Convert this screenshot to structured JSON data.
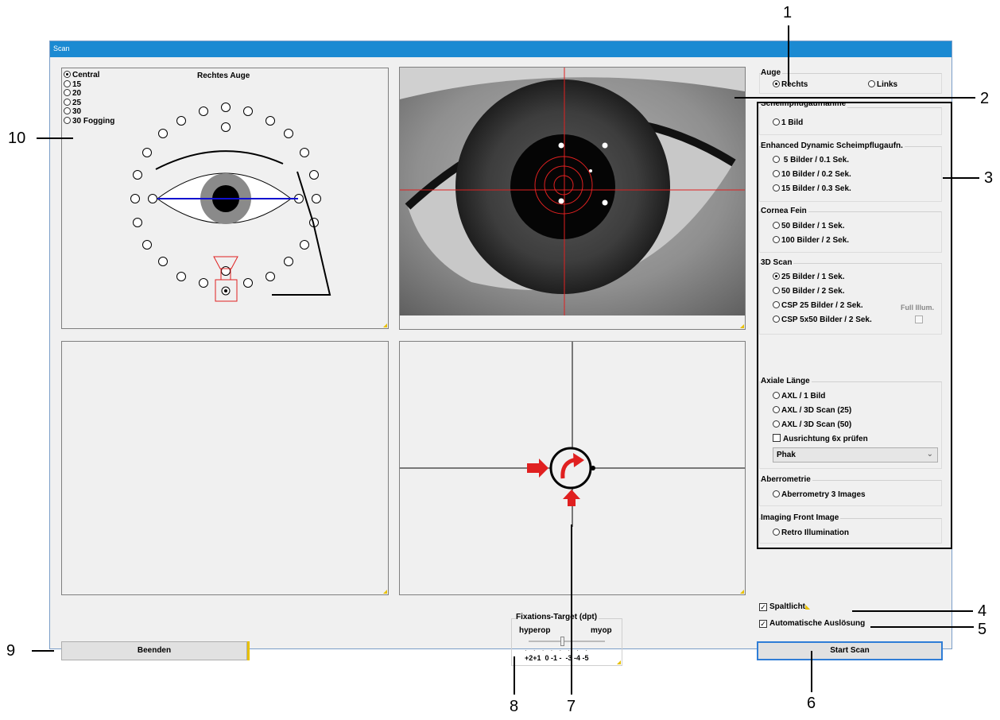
{
  "window": {
    "title": "Scan"
  },
  "left_panel": {
    "title": "Rechtes Auge",
    "options": [
      {
        "label": "Central",
        "selected": true
      },
      {
        "label": "15",
        "selected": false
      },
      {
        "label": "20",
        "selected": false
      },
      {
        "label": "25",
        "selected": false
      },
      {
        "label": "30",
        "selected": false
      },
      {
        "label": "30 Fogging",
        "selected": false
      }
    ]
  },
  "auge": {
    "title": "Auge",
    "rechts": "Rechts",
    "links": "Links",
    "selected": "Rechts"
  },
  "scan_groups": {
    "scheimpflug": {
      "title": "Scheimpflugaufnahme",
      "options": [
        "1 Bild"
      ]
    },
    "enhanced": {
      "title": "Enhanced Dynamic Scheimpflugaufn.",
      "options": [
        "5 Bilder / 0.1 Sek.",
        "10 Bilder / 0.2 Sek.",
        "15 Bilder / 0.3 Sek."
      ]
    },
    "cornea": {
      "title": "Cornea Fein",
      "options": [
        "50 Bilder / 1 Sek.",
        "100 Bilder / 2 Sek."
      ]
    },
    "scan3d": {
      "title": "3D Scan",
      "options": [
        "25 Bilder / 1 Sek.",
        "50 Bilder / 2 Sek.",
        "CSP 25 Bilder / 2 Sek.",
        "CSP 5x50 Bilder / 2 Sek."
      ],
      "selected": "25 Bilder / 1 Sek.",
      "full_illum": "Full Illum."
    },
    "axial": {
      "title": "Axiale Länge",
      "options": [
        "AXL / 1 Bild",
        "AXL / 3D Scan (25)",
        "AXL / 3D Scan (50)"
      ],
      "check": "Ausrichtung 6x prüfen",
      "dropdown": "Phak"
    },
    "aberro": {
      "title": "Aberrometrie",
      "options": [
        "Aberrometry 3 Images"
      ]
    },
    "imaging": {
      "title": "Imaging Front Image",
      "options": [
        "Retro Illumination"
      ]
    }
  },
  "checks": {
    "spaltlicht": "Spaltlicht",
    "auto": "Automatische Auslösung"
  },
  "buttons": {
    "beenden": "Beenden",
    "start": "Start Scan"
  },
  "fixation": {
    "title": "Fixations-Target (dpt)",
    "hyperop": "hyperop",
    "myop": "myop",
    "scale": "+2+1  0 -1 -  -3 -4 -5"
  },
  "callouts": [
    "1",
    "2",
    "3",
    "4",
    "5",
    "6",
    "7",
    "8",
    "9",
    "10"
  ]
}
